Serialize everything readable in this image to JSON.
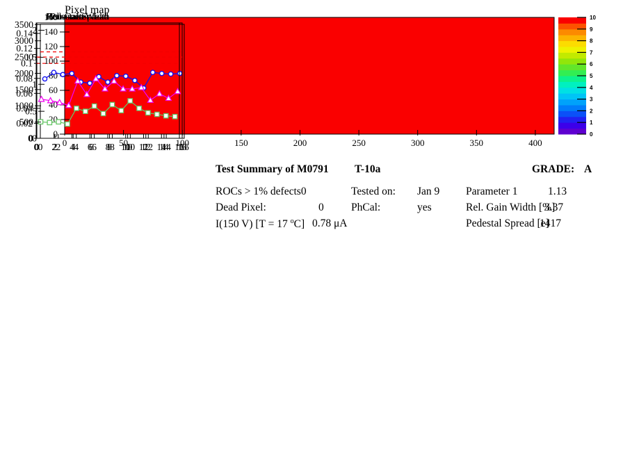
{
  "pixel_map": {
    "title": "Pixel map",
    "fill_color": "#fa0000",
    "frame_color": "#000000",
    "xlim": [
      0,
      416
    ],
    "ylim": [
      0,
      160
    ],
    "x_tick_values": [
      0,
      50,
      100,
      150,
      200,
      250,
      300,
      350,
      400
    ],
    "x_tick_labels": [
      "0",
      "50",
      "100",
      "150",
      "200",
      "250",
      "300",
      "350",
      "400"
    ],
    "y_tick_values": [
      0,
      20,
      40,
      60,
      80,
      100,
      120,
      140,
      160
    ],
    "y_tick_labels": [
      "0",
      "20",
      "40",
      "60",
      "80",
      "100",
      "120",
      "140",
      "160"
    ],
    "colorbar": {
      "zlim": [
        0,
        10
      ],
      "tick_values": [
        0,
        1,
        2,
        3,
        4,
        5,
        6,
        7,
        8,
        9,
        10
      ],
      "tick_labels": [
        "0",
        "1",
        "2",
        "3",
        "4",
        "5",
        "6",
        "7",
        "8",
        "9",
        "10"
      ],
      "colors_bottom_to_top": [
        "#5e00d0",
        "#3c00ea",
        "#2121f2",
        "#0b50f8",
        "#007cfa",
        "#00a2fa",
        "#00c4f6",
        "#00e0e4",
        "#00f0c0",
        "#0cf28c",
        "#32ee52",
        "#62e62a",
        "#92e60a",
        "#c2ea00",
        "#eef200",
        "#fcdc00",
        "#fcb400",
        "#fc8a00",
        "#fc5200",
        "#fa0000"
      ]
    }
  },
  "summary": {
    "title": "Test Summary of M0791",
    "subtitle": "T-10a",
    "grade_label": "GRADE:",
    "grade_value": "A",
    "col1": {
      "rows": [
        {
          "label": "ROCs > 1% defects",
          "value": "0"
        },
        {
          "label": "Dead Pixel:",
          "value": "0"
        },
        {
          "label_pre": "I(150 V) [T = 17 ",
          "label_sup": "o",
          "label_post": "C]",
          "value": "0.78 μA"
        }
      ]
    },
    "col2": {
      "rows": [
        {
          "label": "Tested on:",
          "value": "Jan 9"
        },
        {
          "label": "PhCal:",
          "value": "yes"
        }
      ]
    },
    "col3": {
      "rows": [
        {
          "label": "Parameter 1",
          "value": "1.13"
        },
        {
          "label": "Rel. Gain Width [%]",
          "value": "3.37"
        },
        {
          "label": "Pedestal Spread [e]",
          "value": "1417"
        }
      ]
    }
  },
  "chart_data": [
    {
      "id": "pixel-map",
      "type": "heatmap",
      "title": "Pixel map",
      "x_range": [
        0,
        416
      ],
      "y_range": [
        0,
        160
      ],
      "z_range": [
        0,
        10
      ],
      "uniform_value": 10,
      "legend_position": "right-colorbar"
    },
    {
      "id": "parameter1",
      "type": "line",
      "title": "Parameter 1",
      "marker": "circle",
      "color": "#1010f0",
      "ref_line": {
        "y": 1.6,
        "color": "#f20000",
        "style": "dashed"
      },
      "x": [
        0.5,
        1.5,
        2.5,
        3.5,
        4.5,
        5.5,
        6.5,
        7.5,
        8.5,
        9.5,
        10.5,
        11.5,
        12.5,
        13.5,
        14.5,
        15.5
      ],
      "values": [
        1.1,
        1.22,
        1.18,
        1.2,
        1.04,
        1.02,
        1.14,
        1.04,
        1.16,
        1.15,
        1.07,
        0.93,
        1.22,
        1.2,
        1.19,
        1.2
      ],
      "xlim": [
        0,
        16
      ],
      "ylim": [
        0,
        2.11
      ],
      "x_tick_values": [
        0,
        2,
        4,
        6,
        8,
        10,
        12,
        14,
        16
      ],
      "x_tick_labels": [
        "0",
        "2",
        "4",
        "6",
        "8",
        "10",
        "12",
        "14",
        "16"
      ],
      "y_tick_values": [
        0,
        0.5,
        1,
        1.5,
        2
      ],
      "y_tick_labels": [
        "0",
        "0.5",
        "1",
        "1.5",
        "2"
      ]
    },
    {
      "id": "rel-gain-width",
      "type": "line",
      "title": "Rel. Gain Width",
      "marker": "square",
      "color": "#66c566",
      "ref_line": {
        "y": 0.1,
        "color": "#f20000",
        "style": "dashed"
      },
      "x": [
        0.5,
        1.5,
        2.5,
        3.5,
        4.5,
        5.5,
        6.5,
        7.5,
        8.5,
        9.5,
        10.5,
        11.5,
        12.5,
        13.5,
        14.5,
        15.5
      ],
      "values": [
        0.022,
        0.021,
        0.022,
        0.019,
        0.04,
        0.036,
        0.043,
        0.033,
        0.045,
        0.037,
        0.05,
        0.04,
        0.034,
        0.032,
        0.03,
        0.029
      ],
      "xlim": [
        0,
        16
      ],
      "ylim": [
        0,
        0.154
      ],
      "x_tick_values": [
        0,
        2,
        4,
        6,
        8,
        10,
        12,
        14,
        16
      ],
      "x_tick_labels": [
        "0",
        "2",
        "4",
        "6",
        "8",
        "10",
        "12",
        "14",
        "16"
      ],
      "y_tick_values": [
        0,
        0.02,
        0.04,
        0.06,
        0.08,
        0.1,
        0.12,
        0.14
      ],
      "y_tick_labels": [
        "0",
        "0.02",
        "0.04",
        "0.06",
        "0.08",
        "0.1",
        "0.12",
        "0.14"
      ]
    },
    {
      "id": "pedestal-spread",
      "type": "line",
      "title": "Pedestal Spread",
      "marker": "triangle",
      "color": "#f000f0",
      "ref_line": {
        "y": 2500,
        "color": "#f20000",
        "style": "dashed"
      },
      "x": [
        0.5,
        1.5,
        2.5,
        3.5,
        4.5,
        5.5,
        6.5,
        7.5,
        8.5,
        9.5,
        10.5,
        11.5,
        12.5,
        13.5,
        14.5,
        15.5
      ],
      "values": [
        1200,
        1160,
        1100,
        1010,
        1760,
        1350,
        1830,
        1520,
        1760,
        1520,
        1520,
        1560,
        1170,
        1370,
        1230,
        1440
      ],
      "xlim": [
        0,
        16
      ],
      "ylim": [
        0,
        3550
      ],
      "x_tick_values": [
        0,
        2,
        4,
        6,
        8,
        10,
        12,
        14,
        16
      ],
      "x_tick_labels": [
        "0",
        "2",
        "4",
        "6",
        "8",
        "10",
        "12",
        "14",
        "16"
      ],
      "y_tick_values": [
        0,
        500,
        1000,
        1500,
        2000,
        2500,
        3000,
        3500
      ],
      "y_tick_labels": [
        "0",
        "500",
        "1000",
        "1500",
        "2000",
        "2500",
        "3000",
        "3500"
      ]
    }
  ]
}
